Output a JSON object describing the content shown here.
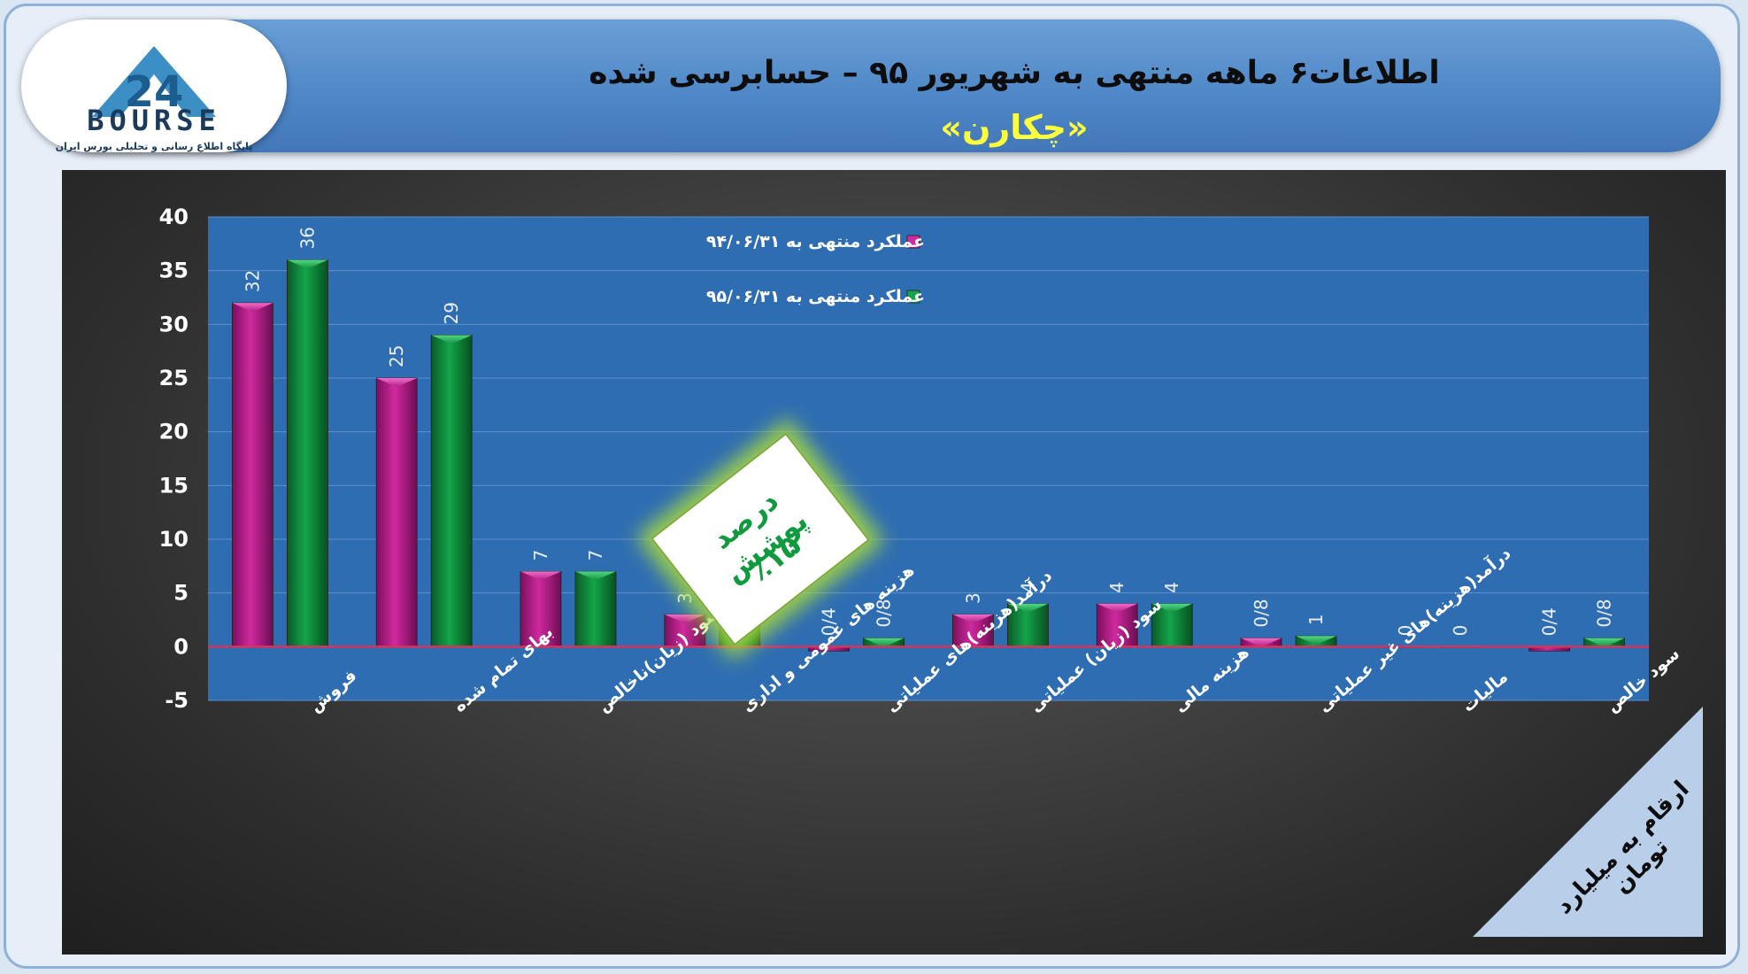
{
  "header": {
    "title": "اطلاعات۶ ماهه منتهی به شهریور ۹۵ – حسابرسی شده",
    "subtitle": "«چکارن»"
  },
  "logo": {
    "brand": "BOURSE",
    "number": "24",
    "tagline": "پایگاه اطلاع رسانی و تحلیلی بورس ایران"
  },
  "badge": {
    "line1": "درصد پوشش",
    "line2": "٪۱۵"
  },
  "unit_note": "ارقام به میلیارد تومان",
  "colors": {
    "series_1": "#d0299e",
    "series_2": "#14a54a",
    "plot_bg": "#2f6db3",
    "zero_line": "#d9335a"
  },
  "chart_data": {
    "type": "bar",
    "categories": [
      "فروش",
      "بهای تمام شده",
      "سود (زیان)ناخالص",
      "هزینه های عمومی و اداری",
      "درآمد(هزینه)های عملیاتی",
      "سود (زیان) عملیاتی",
      "هزینه مالی",
      "درآمد(هزینه)های غیر عملیاتی",
      "مالیات",
      "سود خالص"
    ],
    "series": [
      {
        "name": "عملکرد منتهی به ۹۴/۰۶/۳۱",
        "values": [
          32,
          25,
          7,
          3,
          -0.4,
          3,
          4,
          0.8,
          0,
          -0.4
        ],
        "labels": [
          "32",
          "25",
          "7",
          "3",
          "0/4",
          "3",
          "4",
          "0/8",
          "0",
          "0/4"
        ]
      },
      {
        "name": "عملکرد منتهی به ۹۵/۰۶/۳۱",
        "values": [
          36,
          29,
          7,
          4,
          0.8,
          4,
          4,
          1,
          0,
          0.8
        ],
        "labels": [
          "36",
          "29",
          "7",
          "4",
          "0/8",
          "4",
          "4",
          "1",
          "0",
          "0/8"
        ]
      }
    ],
    "ylim": [
      -5,
      40
    ],
    "yticks": [
      -5,
      0,
      5,
      10,
      15,
      20,
      25,
      30,
      35,
      40
    ],
    "grid": true,
    "legend_position": "top-center"
  }
}
